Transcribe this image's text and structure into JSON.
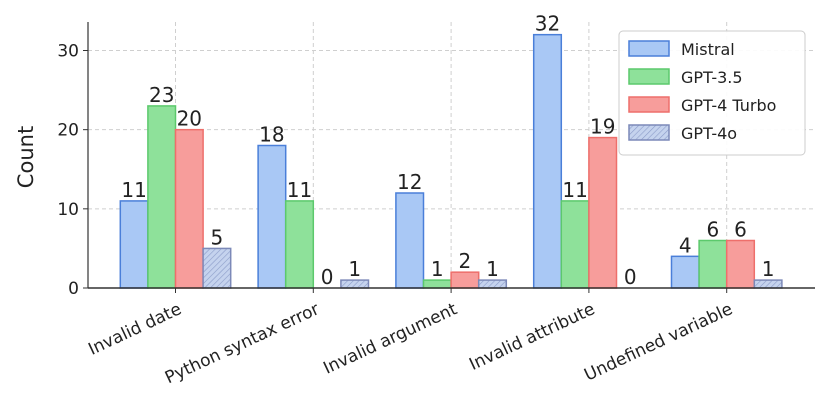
{
  "chart_data": {
    "type": "bar",
    "title": "",
    "xlabel": "",
    "ylabel": "Count",
    "ylim": [
      0,
      33.6
    ],
    "yticks": [
      0,
      10,
      20,
      30
    ],
    "grid": true,
    "legend_position": "top-right",
    "categories": [
      "Invalid date",
      "Python syntax error",
      "Invalid argument",
      "Invalid attribute",
      "Undefined variable"
    ],
    "series": [
      {
        "name": "Mistral",
        "values": [
          11,
          18,
          12,
          32,
          4
        ],
        "color": "#a9c8f5",
        "edge": "#4a7fd9",
        "hatch": false
      },
      {
        "name": "GPT-3.5",
        "values": [
          23,
          11,
          1,
          11,
          6
        ],
        "color": "#8ee19a",
        "edge": "#5cc96c",
        "hatch": false
      },
      {
        "name": "GPT-4 Turbo",
        "values": [
          20,
          0,
          2,
          19,
          6
        ],
        "color": "#f79d9b",
        "edge": "#ee6f6b",
        "hatch": false
      },
      {
        "name": "GPT-4o",
        "values": [
          5,
          1,
          1,
          0,
          1
        ],
        "color": "#c5d3ee",
        "edge": "#7c89b8",
        "hatch": true
      }
    ]
  }
}
